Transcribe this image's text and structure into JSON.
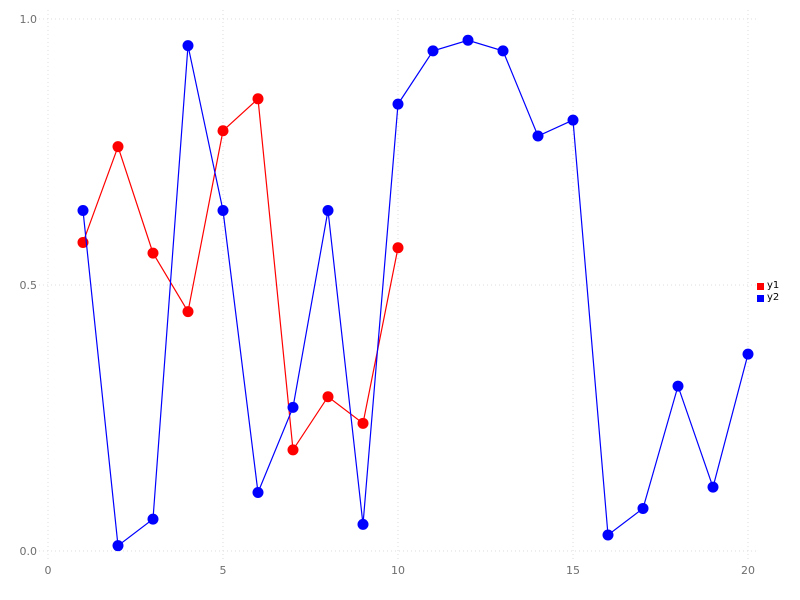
{
  "chart_data": {
    "type": "line",
    "title": "",
    "xlabel": "",
    "ylabel": "",
    "xlim": [
      0,
      20
    ],
    "ylim": [
      0,
      1
    ],
    "grid": true,
    "grid_color": "#dedede",
    "tick_color": "#6e6e6e",
    "legend_position": "right",
    "xticks": [
      0,
      5,
      10,
      15,
      20
    ],
    "xtick_labels": [
      "0",
      "5",
      "10",
      "15",
      "20"
    ],
    "yticks": [
      0,
      0.5,
      1
    ],
    "ytick_labels": [
      "0.0",
      "0.5",
      "1.0"
    ],
    "series": [
      {
        "name": "y1",
        "color": "#ff0000",
        "x": [
          1,
          2,
          3,
          4,
          5,
          6,
          7,
          8,
          9,
          10
        ],
        "values": [
          0.58,
          0.76,
          0.56,
          0.45,
          0.79,
          0.85,
          0.19,
          0.29,
          0.24,
          0.57
        ]
      },
      {
        "name": "y2",
        "color": "#0000ff",
        "x": [
          1,
          2,
          3,
          4,
          5,
          6,
          7,
          8,
          9,
          10,
          11,
          12,
          13,
          14,
          15,
          16,
          17,
          18,
          19,
          20
        ],
        "values": [
          0.64,
          0.01,
          0.06,
          0.95,
          0.64,
          0.11,
          0.27,
          0.64,
          0.05,
          0.84,
          0.94,
          0.96,
          0.94,
          0.78,
          0.81,
          0.03,
          0.08,
          0.31,
          0.12,
          0.37
        ]
      }
    ]
  },
  "legend": {
    "items": [
      {
        "label": "y1",
        "color": "#ff0000"
      },
      {
        "label": "y2",
        "color": "#0000ff"
      }
    ]
  }
}
